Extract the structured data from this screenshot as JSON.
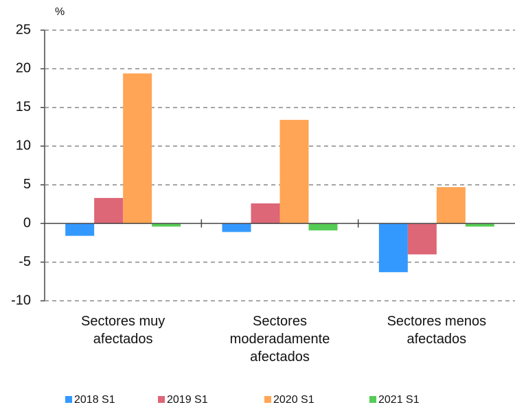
{
  "chart_data": {
    "type": "bar",
    "y_unit": "%",
    "categories": [
      "Sectores muy\nafectados",
      "Sectores\nmoderadamente\nafectados",
      "Sectores menos\nafectados"
    ],
    "series": [
      {
        "name": "2018 S1",
        "color": "#3399ff",
        "values": [
          -1.6,
          -1.1,
          -6.3
        ]
      },
      {
        "name": "2019 S1",
        "color": "#dd6677",
        "values": [
          3.3,
          2.6,
          -4.0
        ]
      },
      {
        "name": "2020 S1",
        "color": "#ffa555",
        "values": [
          19.4,
          13.4,
          4.7
        ]
      },
      {
        "name": "2021 S1",
        "color": "#55cc55",
        "values": [
          -0.4,
          -0.9,
          -0.4
        ]
      }
    ],
    "ylim": [
      -10,
      25
    ],
    "yticks": [
      -10,
      -5,
      0,
      5,
      10,
      15,
      20,
      25
    ],
    "grid": true
  }
}
